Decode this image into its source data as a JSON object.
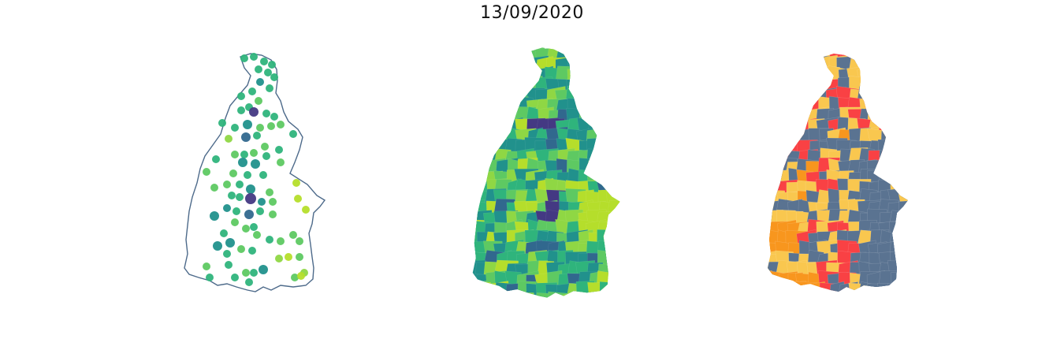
{
  "figure": {
    "title": "13/09/2020"
  },
  "panels": [
    {
      "kind": "proportional-point-map",
      "outline_color": "#4d6a8a"
    },
    {
      "kind": "choropleth-continuous"
    },
    {
      "kind": "choropleth-categorical"
    }
  ],
  "colors": {
    "viridis": [
      "#443983",
      "#31688e",
      "#21918c",
      "#2fb47c",
      "#5ec962",
      "#8fd744",
      "#b5de2b"
    ],
    "categorical": {
      "slate": "#5a7391",
      "yellow": "#f9c74f",
      "orange": "#f8961e",
      "red": "#f94144"
    }
  }
}
